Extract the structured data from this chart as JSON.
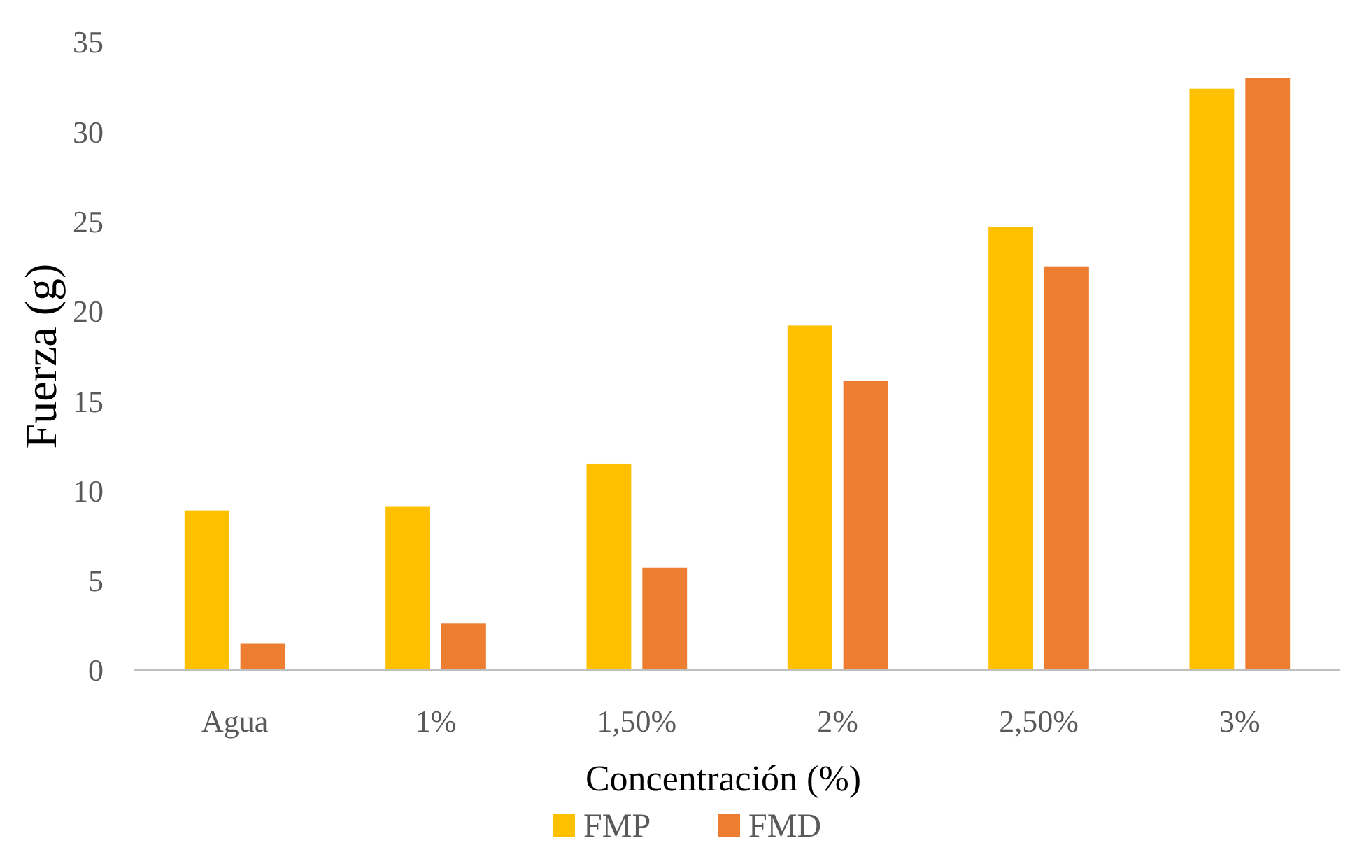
{
  "chart_data": {
    "type": "bar",
    "xlabel": "Concentración (%)",
    "ylabel": "Fuerza (g)",
    "categories": [
      "Agua",
      "1%",
      "1,50%",
      "2%",
      "2,50%",
      "3%"
    ],
    "series": [
      {
        "name": "FMP",
        "color": "#ffc000",
        "values": [
          8.9,
          9.1,
          11.5,
          19.2,
          24.7,
          32.4
        ]
      },
      {
        "name": "FMD",
        "color": "#ed7d31",
        "values": [
          1.5,
          2.6,
          5.7,
          16.1,
          22.5,
          33.0
        ]
      }
    ],
    "ylim": [
      0,
      35
    ],
    "yticks": [
      0,
      5,
      10,
      15,
      20,
      25,
      30,
      35
    ],
    "grid": false,
    "legend": "bottom"
  }
}
